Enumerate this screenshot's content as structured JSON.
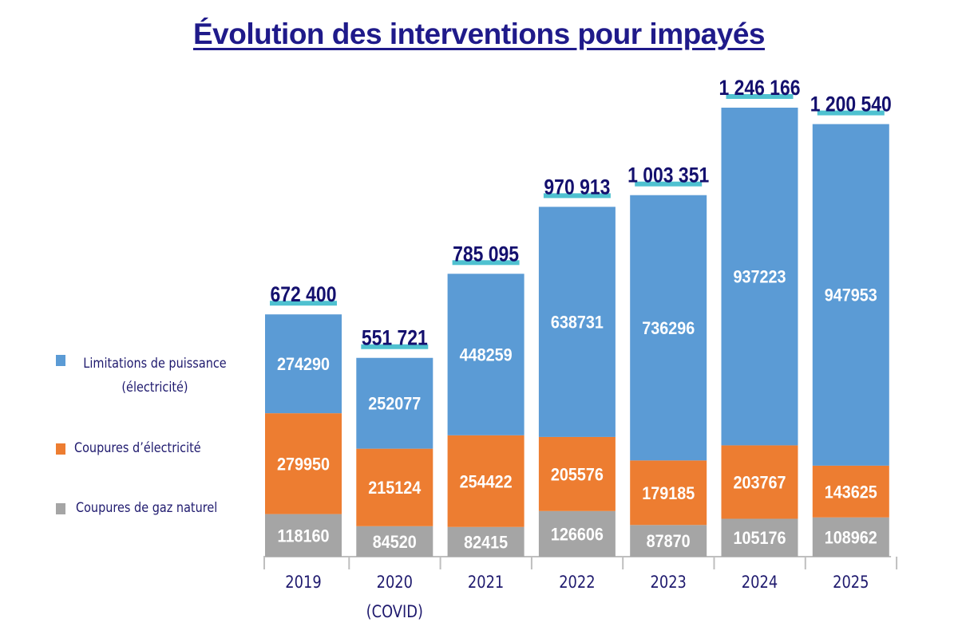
{
  "chart_data": {
    "type": "bar",
    "stacked": true,
    "title": "Évolution des interventions pour impayés",
    "categories": [
      "2019",
      "2020\n(COVID)",
      "2021",
      "2022",
      "2023",
      "2024",
      "2025"
    ],
    "category_lines": [
      [
        "2019"
      ],
      [
        "2020",
        "(COVID)"
      ],
      [
        "2021"
      ],
      [
        "2022"
      ],
      [
        "2023"
      ],
      [
        "2024"
      ],
      [
        "2025"
      ]
    ],
    "series": [
      {
        "name": "Coupures de gaz naturel",
        "color": "#a5a5a5",
        "values": [
          118160,
          84520,
          82415,
          126606,
          87870,
          105176,
          108962
        ]
      },
      {
        "name": "Coupures d’électricité",
        "color": "#ed7d31",
        "values": [
          279950,
          215124,
          254422,
          205576,
          179185,
          203767,
          143625
        ]
      },
      {
        "name": "Limitations de puissance (électricité)",
        "color": "#5b9bd5",
        "values": [
          274290,
          252077,
          448259,
          638731,
          736296,
          937223,
          947953
        ]
      }
    ],
    "totals": [
      "672 400",
      "551 721",
      "785 095",
      "970 913",
      "1 003 351",
      "1 246 166",
      "1 200 540"
    ],
    "total_values": [
      672400,
      551721,
      785095,
      970913,
      1003351,
      1246166,
      1200540
    ],
    "legend_position": "left",
    "grid": false,
    "ylim": [
      0,
      1246166
    ]
  },
  "legend": {
    "items": [
      {
        "lines": [
          "Limitations de puissance",
          "(électricité)"
        ],
        "color": "#5b9bd5"
      },
      {
        "lines": [
          "Coupures d’électricité"
        ],
        "color": "#ed7d31"
      },
      {
        "lines": [
          "Coupures de gaz naturel"
        ],
        "color": "#a5a5a5"
      }
    ]
  },
  "colors": {
    "title": "#1f1a8a",
    "total_label": "#14106e",
    "total_underline": "#4fc1d0"
  }
}
